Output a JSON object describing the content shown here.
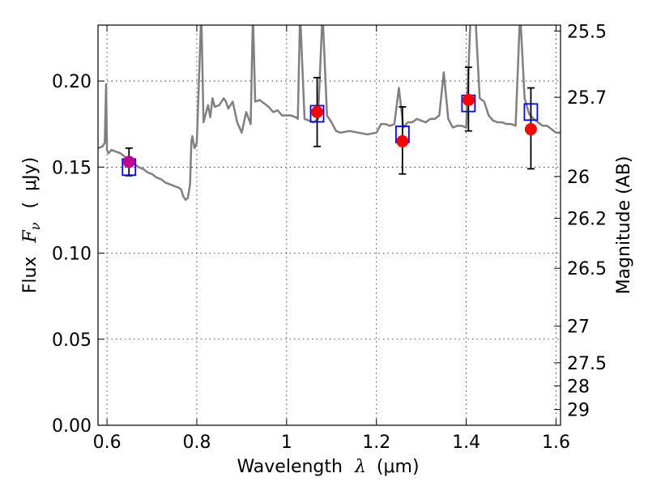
{
  "chart_data": {
    "type": "scatter",
    "xlabel": {
      "prefix": "Wavelength",
      "symbol": "λ",
      "unit_open": "(",
      "unit": "μm",
      "unit_close": ")"
    },
    "ylabel": {
      "prefix": "Flux",
      "symbol": "F",
      "subscript": "ν",
      "unit_open": "(",
      "unit": "μJy",
      "unit_close": ")"
    },
    "y2label": "Magnitude (AB)",
    "xlim": [
      0.58,
      1.61
    ],
    "ylim": [
      0.0,
      0.2325
    ],
    "x_ticks": [
      {
        "value": 0.6,
        "label": "0.6"
      },
      {
        "value": 0.8,
        "label": "0.8"
      },
      {
        "value": 1.0,
        "label": "1"
      },
      {
        "value": 1.2,
        "label": "1.2"
      },
      {
        "value": 1.4,
        "label": "1.4"
      },
      {
        "value": 1.6,
        "label": "1.6"
      }
    ],
    "y_ticks": [
      {
        "value": 0.0,
        "label": "0.00"
      },
      {
        "value": 0.05,
        "label": "0.05"
      },
      {
        "value": 0.1,
        "label": "0.10"
      },
      {
        "value": 0.15,
        "label": "0.15"
      },
      {
        "value": 0.2,
        "label": "0.20"
      }
    ],
    "y2_ticks": [
      {
        "value": 25.5,
        "label": "25.5"
      },
      {
        "value": 25.7,
        "label": "25.7"
      },
      {
        "value": 26.0,
        "label": "26"
      },
      {
        "value": 26.2,
        "label": "26.2"
      },
      {
        "value": 26.5,
        "label": "26.5"
      },
      {
        "value": 27.0,
        "label": "27"
      },
      {
        "value": 27.5,
        "label": "27.5"
      },
      {
        "value": 28.0,
        "label": "28"
      },
      {
        "value": 29.0,
        "label": "29"
      }
    ],
    "grid": true,
    "model_spectrum": {
      "color": "#808080",
      "x": [
        0.58,
        0.59,
        0.595,
        0.598,
        0.6,
        0.603,
        0.61,
        0.62,
        0.63,
        0.64,
        0.65,
        0.66,
        0.67,
        0.68,
        0.69,
        0.7,
        0.71,
        0.72,
        0.73,
        0.74,
        0.75,
        0.76,
        0.765,
        0.77,
        0.775,
        0.78,
        0.785,
        0.788,
        0.79,
        0.795,
        0.8,
        0.81,
        0.815,
        0.82,
        0.825,
        0.83,
        0.835,
        0.84,
        0.85,
        0.86,
        0.865,
        0.87,
        0.88,
        0.89,
        0.9,
        0.91,
        0.92,
        0.925,
        0.93,
        0.94,
        0.95,
        0.96,
        0.97,
        0.98,
        0.99,
        1.0,
        1.01,
        1.02,
        1.025,
        1.03,
        1.04,
        1.05,
        1.06,
        1.07,
        1.08,
        1.09,
        1.1,
        1.11,
        1.12,
        1.14,
        1.16,
        1.18,
        1.2,
        1.21,
        1.22,
        1.23,
        1.24,
        1.25,
        1.26,
        1.27,
        1.28,
        1.29,
        1.3,
        1.31,
        1.32,
        1.33,
        1.34,
        1.35,
        1.36,
        1.37,
        1.38,
        1.39,
        1.4,
        1.41,
        1.42,
        1.43,
        1.44,
        1.45,
        1.46,
        1.47,
        1.48,
        1.49,
        1.5,
        1.51,
        1.52,
        1.53,
        1.54,
        1.55,
        1.56,
        1.57,
        1.58,
        1.59,
        1.6,
        1.61
      ],
      "y": [
        0.161,
        0.162,
        0.164,
        0.198,
        0.16,
        0.158,
        0.16,
        0.159,
        0.158,
        0.156,
        0.154,
        0.152,
        0.15,
        0.149,
        0.147,
        0.146,
        0.144,
        0.143,
        0.141,
        0.14,
        0.139,
        0.138,
        0.137,
        0.133,
        0.131,
        0.132,
        0.14,
        0.165,
        0.168,
        0.161,
        0.164,
        0.24,
        0.176,
        0.181,
        0.186,
        0.179,
        0.19,
        0.185,
        0.186,
        0.19,
        0.188,
        0.184,
        0.188,
        0.176,
        0.17,
        0.182,
        0.175,
        0.24,
        0.188,
        0.189,
        0.187,
        0.185,
        0.182,
        0.183,
        0.18,
        0.18,
        0.18,
        0.179,
        0.178,
        0.24,
        0.178,
        0.177,
        0.176,
        0.178,
        0.24,
        0.18,
        0.176,
        0.171,
        0.17,
        0.171,
        0.17,
        0.169,
        0.17,
        0.175,
        0.175,
        0.174,
        0.175,
        0.196,
        0.173,
        0.176,
        0.176,
        0.178,
        0.177,
        0.176,
        0.178,
        0.178,
        0.18,
        0.205,
        0.178,
        0.173,
        0.174,
        0.174,
        0.173,
        0.24,
        0.24,
        0.19,
        0.188,
        0.18,
        0.177,
        0.176,
        0.176,
        0.175,
        0.175,
        0.174,
        0.24,
        0.19,
        0.181,
        0.178,
        0.176,
        0.174,
        0.174,
        0.172,
        0.17,
        0.17
      ]
    },
    "photometry": [
      {
        "x": 0.649,
        "y": 0.153,
        "model": 0.15,
        "err_low": 0.145,
        "err_high": 0.161,
        "marker_color": "#c0008f"
      },
      {
        "x": 1.068,
        "y": 0.182,
        "model": 0.181,
        "err_low": 0.162,
        "err_high": 0.202,
        "marker_color": "#ff0000"
      },
      {
        "x": 1.258,
        "y": 0.165,
        "model": 0.169,
        "err_low": 0.146,
        "err_high": 0.185,
        "marker_color": "#ff0000"
      },
      {
        "x": 1.405,
        "y": 0.189,
        "model": 0.187,
        "err_low": 0.171,
        "err_high": 0.208,
        "marker_color": "#ff0000"
      },
      {
        "x": 1.544,
        "y": 0.172,
        "model": 0.182,
        "err_low": 0.149,
        "err_high": 0.196,
        "marker_color": "#ff0000"
      }
    ],
    "model_marker_color": "#0000ff",
    "errorbar_color": "#000000"
  }
}
